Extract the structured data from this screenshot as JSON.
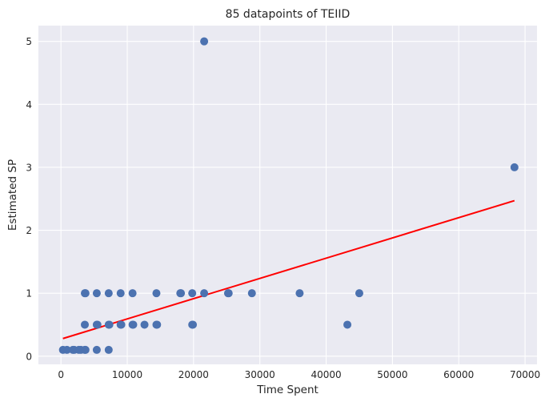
{
  "chart_data": {
    "type": "scatter",
    "title": "85 datapoints of TEIID",
    "xlabel": "Time Spent",
    "ylabel": "Estimated SP",
    "xlim": [
      -3400,
      71800
    ],
    "ylim": [
      -0.13,
      5.25
    ],
    "xticks": [
      0,
      10000,
      20000,
      30000,
      40000,
      50000,
      60000,
      70000
    ],
    "yticks": [
      0,
      1,
      2,
      3,
      4,
      5
    ],
    "grid": true,
    "point_color": "#4c72b0",
    "fit_color": "#ff0000",
    "background_color": "#eaeaf2",
    "points": [
      {
        "x": 300,
        "y": 0.1
      },
      {
        "x": 900,
        "y": 0.1
      },
      {
        "x": 1800,
        "y": 0.1
      },
      {
        "x": 2000,
        "y": 0.1
      },
      {
        "x": 2700,
        "y": 0.1
      },
      {
        "x": 3000,
        "y": 0.1
      },
      {
        "x": 3600,
        "y": 0.1
      },
      {
        "x": 3700,
        "y": 0.1
      },
      {
        "x": 5400,
        "y": 0.1
      },
      {
        "x": 7200,
        "y": 0.1
      },
      {
        "x": 3600,
        "y": 0.5
      },
      {
        "x": 5400,
        "y": 0.5
      },
      {
        "x": 5500,
        "y": 0.5
      },
      {
        "x": 7200,
        "y": 0.5
      },
      {
        "x": 7300,
        "y": 0.5
      },
      {
        "x": 9000,
        "y": 0.5
      },
      {
        "x": 9100,
        "y": 0.5
      },
      {
        "x": 10800,
        "y": 0.5
      },
      {
        "x": 10900,
        "y": 0.5
      },
      {
        "x": 12600,
        "y": 0.5
      },
      {
        "x": 14400,
        "y": 0.5
      },
      {
        "x": 14500,
        "y": 0.5
      },
      {
        "x": 19800,
        "y": 0.5
      },
      {
        "x": 19900,
        "y": 0.5
      },
      {
        "x": 43200,
        "y": 0.5
      },
      {
        "x": 3600,
        "y": 1
      },
      {
        "x": 3700,
        "y": 1
      },
      {
        "x": 5400,
        "y": 1
      },
      {
        "x": 7200,
        "y": 1
      },
      {
        "x": 9000,
        "y": 1
      },
      {
        "x": 10800,
        "y": 1
      },
      {
        "x": 14400,
        "y": 1
      },
      {
        "x": 18000,
        "y": 1
      },
      {
        "x": 18100,
        "y": 1
      },
      {
        "x": 19800,
        "y": 1
      },
      {
        "x": 21600,
        "y": 1
      },
      {
        "x": 25200,
        "y": 1
      },
      {
        "x": 25300,
        "y": 1
      },
      {
        "x": 28800,
        "y": 1
      },
      {
        "x": 36000,
        "y": 1
      },
      {
        "x": 45000,
        "y": 1
      },
      {
        "x": 21600,
        "y": 5
      },
      {
        "x": 68400,
        "y": 3
      }
    ],
    "fit_line": {
      "x": [
        300,
        68400
      ],
      "y": [
        0.28,
        2.47
      ]
    }
  }
}
